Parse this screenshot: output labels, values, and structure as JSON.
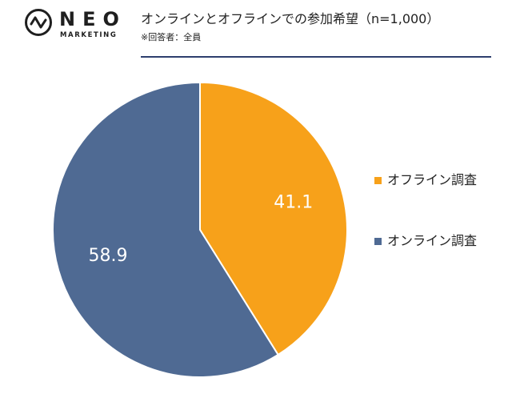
{
  "brand": {
    "name": "NEO",
    "tagline": "MARKETING",
    "icon": "pulse-circle-icon"
  },
  "header": {
    "title": "オンラインとオフラインでの参加希望（n=1,000）",
    "note": "※回答者：全員"
  },
  "colors": {
    "offline": "#F7A11A",
    "online": "#4F6A93",
    "rule": "#2E3F6E"
  },
  "chart_data": {
    "type": "pie",
    "categories": [
      "オフライン調査",
      "オンライン調査"
    ],
    "values": [
      41.1,
      58.9
    ],
    "data_labels": [
      "41.1",
      "58.9"
    ],
    "colors": [
      "#F7A11A",
      "#4F6A93"
    ],
    "start_angle_deg": 0,
    "direction": "clockwise",
    "legend_position": "right"
  }
}
